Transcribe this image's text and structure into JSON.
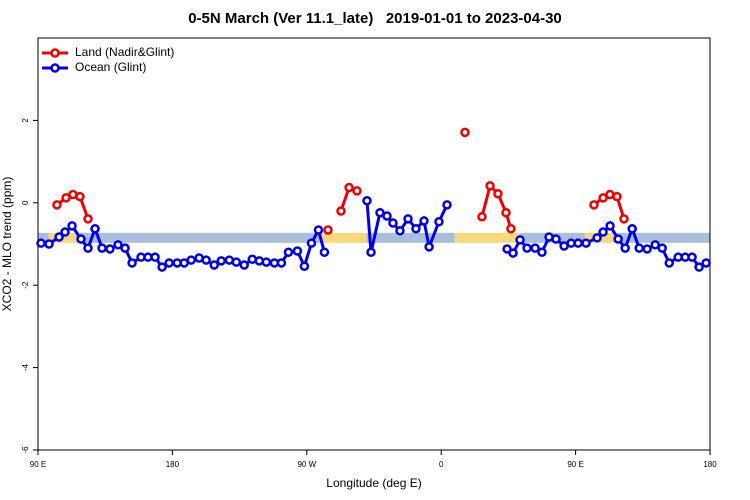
{
  "chart_data": {
    "type": "line",
    "title": "0-5N March (Ver 11.1_late)   2019-01-01 to 2023-04-30",
    "xlabel": "Longitude (deg E)",
    "ylabel": "XCO2 - MLO trend (ppm)",
    "xlim": [
      90,
      540
    ],
    "xticks": [
      {
        "value": 90,
        "label": "90 E"
      },
      180,
      {
        "value": 270,
        "label": "90 W"
      },
      {
        "value": 360,
        "label": "0"
      },
      {
        "value": 450,
        "label": "90 E"
      },
      {
        "value": 540,
        "label": "180"
      }
    ],
    "ylim": [
      -6,
      4
    ],
    "yticks": [
      -6,
      -4,
      -2,
      0,
      2
    ],
    "legend": "top-left",
    "band": {
      "y": -0.85,
      "segments": [
        {
          "x": [
            90,
            97
          ],
          "color": "#a9bedd"
        },
        {
          "x": [
            97,
            118
          ],
          "color": "#f7d87a"
        },
        {
          "x": [
            118,
            279
          ],
          "color": "#a9bedd"
        },
        {
          "x": [
            279,
            310
          ],
          "color": "#f7d87a"
        },
        {
          "x": [
            310,
            369
          ],
          "color": "#a9bedd"
        },
        {
          "x": [
            369,
            413
          ],
          "color": "#f7d87a"
        },
        {
          "x": [
            413,
            456
          ],
          "color": "#a9bedd"
        },
        {
          "x": [
            456,
            476
          ],
          "color": "#f7d87a"
        },
        {
          "x": [
            476,
            540
          ],
          "color": "#a9bedd"
        }
      ]
    },
    "series": [
      {
        "name": "Land (Nadir&Glint)",
        "color": "#ee0000",
        "x": [
          102.7,
          108.8,
          113.4,
          118.1,
          123.5,
          null,
          284.2,
          null,
          292.9,
          298.3,
          303.6,
          null,
          375.9,
          null,
          387.3,
          392.7,
          398.0,
          403.4,
          406.7,
          null,
          462.3,
          468.4,
          473.0,
          477.7,
          482.4
        ],
        "values": [
          -0.05,
          0.12,
          0.2,
          0.15,
          -0.39,
          null,
          -0.66,
          null,
          -0.2,
          0.37,
          0.29,
          null,
          1.71,
          null,
          -0.34,
          0.41,
          0.22,
          -0.24,
          -0.63,
          null,
          -0.05,
          0.12,
          0.2,
          0.15,
          -0.39
        ]
      },
      {
        "name": "Ocean (Glint)",
        "color": "#0000ee",
        "x": [
          92.0,
          97.4,
          104.1,
          108.1,
          112.8,
          118.8,
          123.5,
          128.2,
          132.9,
          138.2,
          143.6,
          148.3,
          153.0,
          159.0,
          163.7,
          168.4,
          173.1,
          177.8,
          183.2,
          187.9,
          192.6,
          197.9,
          202.6,
          208.0,
          212.7,
          218.1,
          222.8,
          228.1,
          233.5,
          238.2,
          242.9,
          248.3,
          253.0,
          257.7,
          263.7,
          268.4,
          273.1,
          277.8,
          281.8,
          null,
          310.3,
          313.0,
          319.0,
          323.7,
          327.7,
          332.4,
          337.8,
          343.1,
          348.5,
          351.9,
          358.5,
          363.9,
          null,
          404.1,
          408.1,
          412.8,
          417.5,
          422.9,
          427.5,
          432.2,
          436.9,
          442.3,
          447.0,
          451.7,
          457.0,
          464.4,
          468.4,
          473.1,
          478.5,
          483.2,
          487.9,
          492.6,
          497.9,
          503.3,
          508.0,
          512.7,
          518.7,
          523.4,
          528.0,
          532.7,
          537.4
        ],
        "values": [
          -0.98,
          -1.0,
          -0.83,
          -0.71,
          -0.56,
          -0.88,
          -1.1,
          -0.63,
          -1.1,
          -1.12,
          -1.02,
          -1.1,
          -1.46,
          -1.32,
          -1.32,
          -1.32,
          -1.56,
          -1.46,
          -1.46,
          -1.46,
          -1.39,
          -1.34,
          -1.39,
          -1.51,
          -1.41,
          -1.39,
          -1.44,
          -1.51,
          -1.37,
          -1.41,
          -1.44,
          -1.46,
          -1.46,
          -1.2,
          -1.17,
          -1.54,
          -0.98,
          -0.66,
          -1.2,
          null,
          0.05,
          -1.2,
          -0.24,
          -0.32,
          -0.49,
          -0.68,
          -0.39,
          -0.63,
          -0.44,
          -1.07,
          -0.46,
          -0.05,
          null,
          -1.12,
          -1.22,
          -0.9,
          -1.1,
          -1.1,
          -1.2,
          -0.83,
          -0.88,
          -1.05,
          -0.98,
          -0.98,
          -0.98,
          -0.85,
          -0.71,
          -0.56,
          -0.88,
          -1.1,
          -0.63,
          -1.1,
          -1.12,
          -1.02,
          -1.1,
          -1.46,
          -1.32,
          -1.32,
          -1.32,
          -1.56,
          -1.46
        ]
      }
    ]
  }
}
